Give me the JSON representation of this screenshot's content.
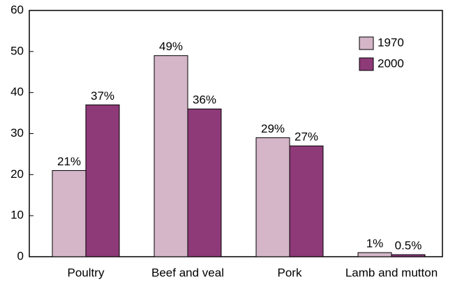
{
  "chart_data": {
    "type": "bar",
    "categories": [
      "Poultry",
      "Beef and veal",
      "Pork",
      "Lamb and mutton"
    ],
    "series": [
      {
        "name": "1970",
        "color": "#d4b6c8",
        "values": [
          21,
          49,
          29,
          1
        ],
        "value_labels": [
          "21%",
          "49%",
          "29%",
          "1%"
        ]
      },
      {
        "name": "2000",
        "color": "#8e3a78",
        "values": [
          37,
          36,
          27,
          0.5
        ],
        "value_labels": [
          "37%",
          "36%",
          "27%",
          "0.5%"
        ]
      }
    ],
    "ylim": [
      0,
      60
    ],
    "yticks": [
      0,
      10,
      20,
      30,
      40,
      50,
      60
    ],
    "grid": false,
    "legend": "top-right"
  }
}
